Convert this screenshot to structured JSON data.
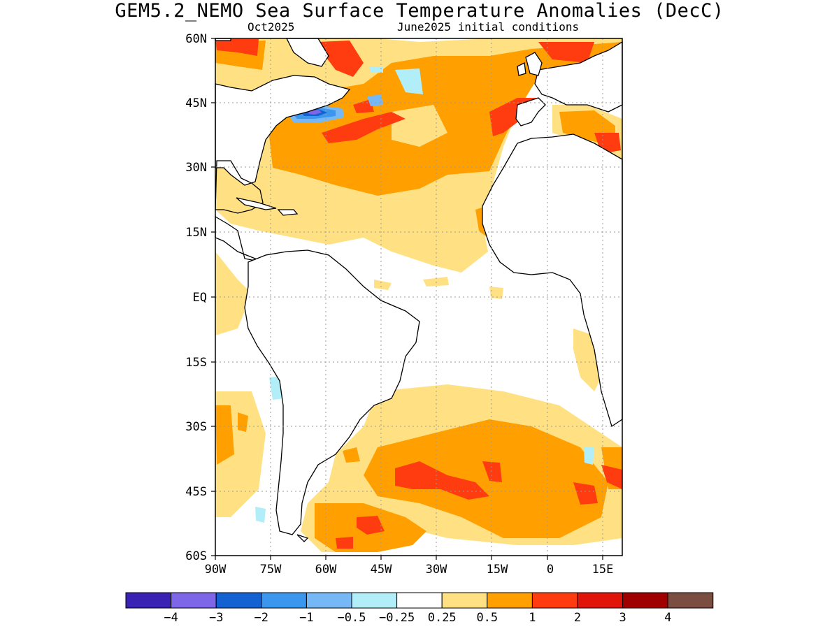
{
  "title": "GEM5.2_NEMO Sea Surface Temperature Anomalies (DecC)",
  "subtitle_left": "Oct2025",
  "subtitle_right": "June2025 initial conditions",
  "map": {
    "lon_range": [
      -90,
      20
    ],
    "lat_range": [
      -60,
      60
    ],
    "grid": "dotted",
    "lat_labels": [
      "60N",
      "45N",
      "30N",
      "15N",
      "EQ",
      "15S",
      "30S",
      "45S",
      "60S"
    ],
    "lon_labels": [
      "90W",
      "75W",
      "60W",
      "45W",
      "30W",
      "15W",
      "0",
      "15E"
    ]
  },
  "colorbar": {
    "colors": [
      "#3a22b4",
      "#7e66e8",
      "#1461d2",
      "#3b96ee",
      "#76b8f6",
      "#b2eef8",
      "#ffffff",
      "#ffe184",
      "#ffa000",
      "#ff3c10",
      "#e01408",
      "#a00000",
      "#7a4e40"
    ],
    "labels": [
      "−4",
      "−3",
      "−2",
      "−1",
      "−0.5",
      "−0.25",
      "0.25",
      "0.5",
      "1",
      "2",
      "3",
      "4"
    ]
  }
}
